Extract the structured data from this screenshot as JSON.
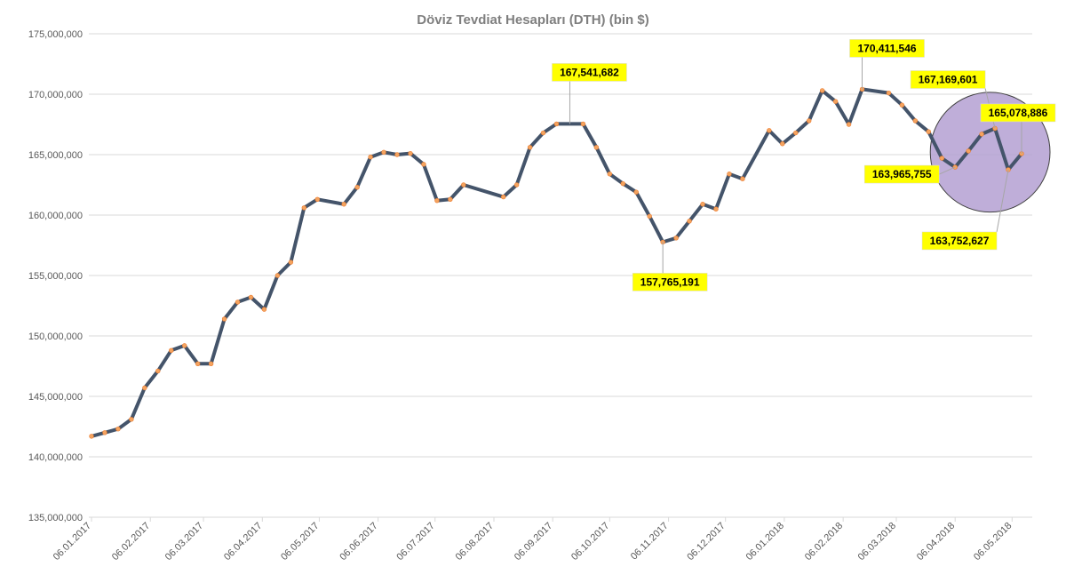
{
  "colors": {
    "line": "#44546a",
    "marker": "#f4a460",
    "marker_stroke": "#ed7d31",
    "grid": "#d9d9d9",
    "callout_bg": "#ffff00",
    "highlight_fill": "#b4a0d2",
    "highlight_stroke": "#404040"
  },
  "chart_data": {
    "type": "line",
    "title": "Döviz Tevdiat Hesapları (DTH) (bin $)",
    "xlabel": "",
    "ylabel": "",
    "ylim": [
      135000000,
      175000000
    ],
    "y_ticks": [
      135000000,
      140000000,
      145000000,
      150000000,
      155000000,
      160000000,
      165000000,
      170000000,
      175000000
    ],
    "y_tick_labels": [
      "135,000,000",
      "140,000,000",
      "145,000,000",
      "150,000,000",
      "155,000,000",
      "160,000,000",
      "165,000,000",
      "170,000,000",
      "175,000,000"
    ],
    "x_tick_labels": [
      "06.01.2017",
      "06.02.2017",
      "06.03.2017",
      "06.04.2017",
      "06.05.2017",
      "06.06.2017",
      "06.07.2017",
      "06.08.2017",
      "06.09.2017",
      "06.10.2017",
      "06.11.2017",
      "06.12.2017",
      "06.01.2018",
      "06.02.2018",
      "06.03.2018",
      "06.04.2018",
      "06.05.2018"
    ],
    "x_start": "2017-01-06",
    "x_end": "2018-05-11",
    "grid": true,
    "legend": "none",
    "series": [
      {
        "points": [
          [
            "2017-01-06",
            141700000
          ],
          [
            "2017-01-13",
            142000000
          ],
          [
            "2017-01-20",
            142300000
          ],
          [
            "2017-01-27",
            143100000
          ],
          [
            "2017-02-03",
            145700000
          ],
          [
            "2017-02-10",
            147100000
          ],
          [
            "2017-02-17",
            148800000
          ],
          [
            "2017-02-24",
            149200000
          ],
          [
            "2017-03-03",
            147700000
          ],
          [
            "2017-03-10",
            147700000
          ],
          [
            "2017-03-17",
            151400000
          ],
          [
            "2017-03-24",
            152800000
          ],
          [
            "2017-03-31",
            153200000
          ],
          [
            "2017-04-07",
            152200000
          ],
          [
            "2017-04-14",
            155000000
          ],
          [
            "2017-04-21",
            156100000
          ],
          [
            "2017-04-28",
            160600000
          ],
          [
            "2017-05-05",
            161300000
          ],
          [
            "2017-05-19",
            160900000
          ],
          [
            "2017-05-26",
            162300000
          ],
          [
            "2017-06-02",
            164800000
          ],
          [
            "2017-06-09",
            165200000
          ],
          [
            "2017-06-16",
            165000000
          ],
          [
            "2017-06-23",
            165100000
          ],
          [
            "2017-06-30",
            164200000
          ],
          [
            "2017-07-07",
            161200000
          ],
          [
            "2017-07-14",
            161300000
          ],
          [
            "2017-07-21",
            162500000
          ],
          [
            "2017-08-11",
            161500000
          ],
          [
            "2017-08-18",
            162500000
          ],
          [
            "2017-08-25",
            165600000
          ],
          [
            "2017-09-01",
            166800000
          ],
          [
            "2017-09-08",
            167541682
          ],
          [
            "2017-09-22",
            167541682
          ],
          [
            "2017-09-29",
            165600000
          ],
          [
            "2017-10-06",
            163400000
          ],
          [
            "2017-10-13",
            162600000
          ],
          [
            "2017-10-20",
            161900000
          ],
          [
            "2017-10-27",
            159900000
          ],
          [
            "2017-11-03",
            157765191
          ],
          [
            "2017-11-10",
            158100000
          ],
          [
            "2017-11-17",
            159500000
          ],
          [
            "2017-11-24",
            160900000
          ],
          [
            "2017-12-01",
            160500000
          ],
          [
            "2017-12-08",
            163400000
          ],
          [
            "2017-12-15",
            163000000
          ],
          [
            "2017-12-29",
            167000000
          ],
          [
            "2018-01-05",
            165900000
          ],
          [
            "2018-01-12",
            166800000
          ],
          [
            "2018-01-19",
            167800000
          ],
          [
            "2018-01-26",
            170300000
          ],
          [
            "2018-02-02",
            169400000
          ],
          [
            "2018-02-09",
            167500000
          ],
          [
            "2018-02-16",
            170411546
          ],
          [
            "2018-03-02",
            170100000
          ],
          [
            "2018-03-09",
            169100000
          ],
          [
            "2018-03-16",
            167800000
          ],
          [
            "2018-03-23",
            166900000
          ],
          [
            "2018-03-30",
            164700000
          ],
          [
            "2018-04-06",
            163965755
          ],
          [
            "2018-04-13",
            165300000
          ],
          [
            "2018-04-20",
            166700000
          ],
          [
            "2018-04-27",
            167169601
          ],
          [
            "2018-05-04",
            163752627
          ],
          [
            "2018-05-11",
            165078886
          ]
        ]
      }
    ],
    "annotations": [
      {
        "label": "167,541,682",
        "point_date": "2017-09-15",
        "point_value": 167541682,
        "placement": "above-right"
      },
      {
        "label": "157,765,191",
        "point_date": "2017-11-03",
        "point_value": 157765191,
        "placement": "below"
      },
      {
        "label": "170,411,546",
        "point_date": "2018-02-16",
        "point_value": 170411546,
        "placement": "above-right"
      },
      {
        "label": "167,169,601",
        "point_date": "2018-04-27",
        "point_value": 167169601,
        "placement": "above"
      },
      {
        "label": "165,078,886",
        "point_date": "2018-05-11",
        "point_value": 165078886,
        "placement": "above-right"
      },
      {
        "label": "163,965,755",
        "point_date": "2018-04-06",
        "point_value": 163965755,
        "placement": "below-left"
      },
      {
        "label": "163,752,627",
        "point_date": "2018-05-04",
        "point_value": 163752627,
        "placement": "below-left"
      }
    ],
    "highlight": {
      "shape": "circle",
      "date_from": "2018-04-06",
      "date_to": "2018-05-11"
    }
  }
}
